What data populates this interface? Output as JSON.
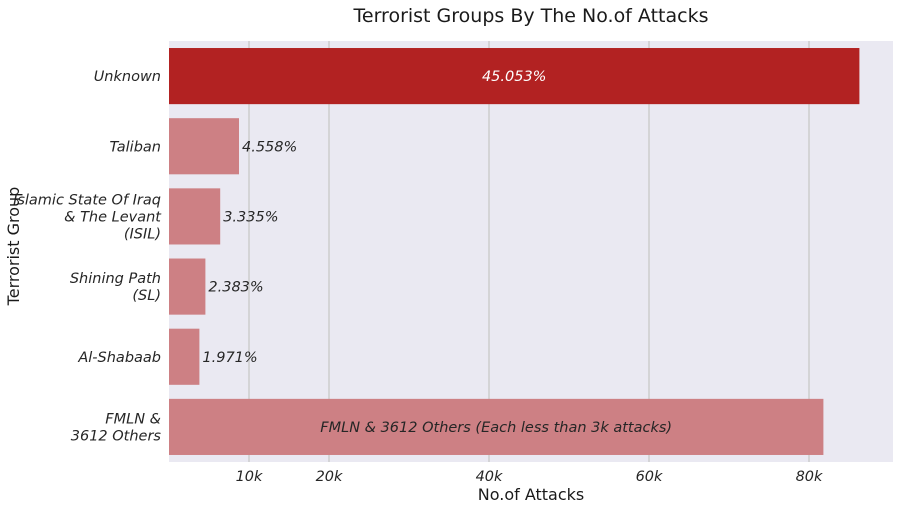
{
  "chart_data": {
    "type": "bar",
    "orientation": "horizontal",
    "title": "Terrorist Groups By The No.of Attacks",
    "xlabel": "No.of Attacks",
    "ylabel": "Terrorist Group",
    "xlim": [
      0,
      90500
    ],
    "xticks": [
      {
        "value": 10000,
        "label": "10k"
      },
      {
        "value": 20000,
        "label": "20k"
      },
      {
        "value": 40000,
        "label": "40k"
      },
      {
        "value": 60000,
        "label": "60k"
      },
      {
        "value": 80000,
        "label": "80k"
      }
    ],
    "grid": true,
    "bars": [
      {
        "lines": [
          "Unknown"
        ],
        "value": 86300,
        "label": "45.053%",
        "label_pos": "center",
        "color": "#b22222",
        "label_color": "#ffffff"
      },
      {
        "lines": [
          "Taliban"
        ],
        "value": 8750,
        "label": "4.558%",
        "label_pos": "end",
        "color": "#cd8084",
        "label_color": "#262626"
      },
      {
        "lines": [
          "Islamic State Of Iraq",
          "& The Levant",
          "(ISIL)"
        ],
        "value": 6400,
        "label": "3.335%",
        "label_pos": "end",
        "color": "#cd8084",
        "label_color": "#262626"
      },
      {
        "lines": [
          "Shining Path",
          "(SL)"
        ],
        "value": 4550,
        "label": "2.383%",
        "label_pos": "end",
        "color": "#cd8084",
        "label_color": "#262626"
      },
      {
        "lines": [
          "Al-Shabaab"
        ],
        "value": 3800,
        "label": "1.971%",
        "label_pos": "end",
        "color": "#cd8084",
        "label_color": "#262626"
      },
      {
        "lines": [
          "FMLN &",
          "3612 Others"
        ],
        "value": 81800,
        "label": "FMLN & 3612 Others (Each less than 3k attacks)",
        "label_pos": "center",
        "color": "#cd8084",
        "label_color": "#262626"
      }
    ],
    "colors": {
      "background": "#eae9f2",
      "grid": "#cfcfcf",
      "highlight": "#b22222",
      "bar": "#cd8084"
    }
  }
}
